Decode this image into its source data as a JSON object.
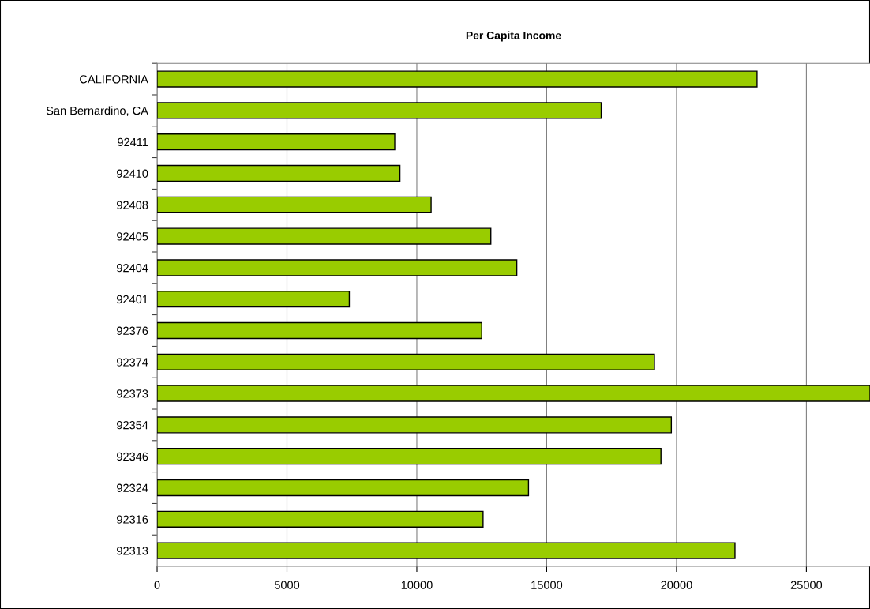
{
  "chart_data": {
    "type": "bar",
    "orientation": "horizontal",
    "title": "Per Capita Income",
    "categories": [
      "CALIFORNIA",
      "San Bernardino, CA",
      "92411",
      "92410",
      "92408",
      "92405",
      "92404",
      "92401",
      "92376",
      "92374",
      "92373",
      "92354",
      "92346",
      "92324",
      "92316",
      "92313"
    ],
    "values": [
      23100,
      17100,
      9150,
      9350,
      10550,
      12850,
      13850,
      7400,
      12500,
      19150,
      27450,
      19800,
      19400,
      14300,
      12550,
      22250
    ],
    "color": "#99cc00",
    "xlim": [
      0,
      27450
    ],
    "xticks": [
      0,
      5000,
      10000,
      15000,
      20000,
      25000
    ],
    "grid": "x",
    "legend": false
  }
}
